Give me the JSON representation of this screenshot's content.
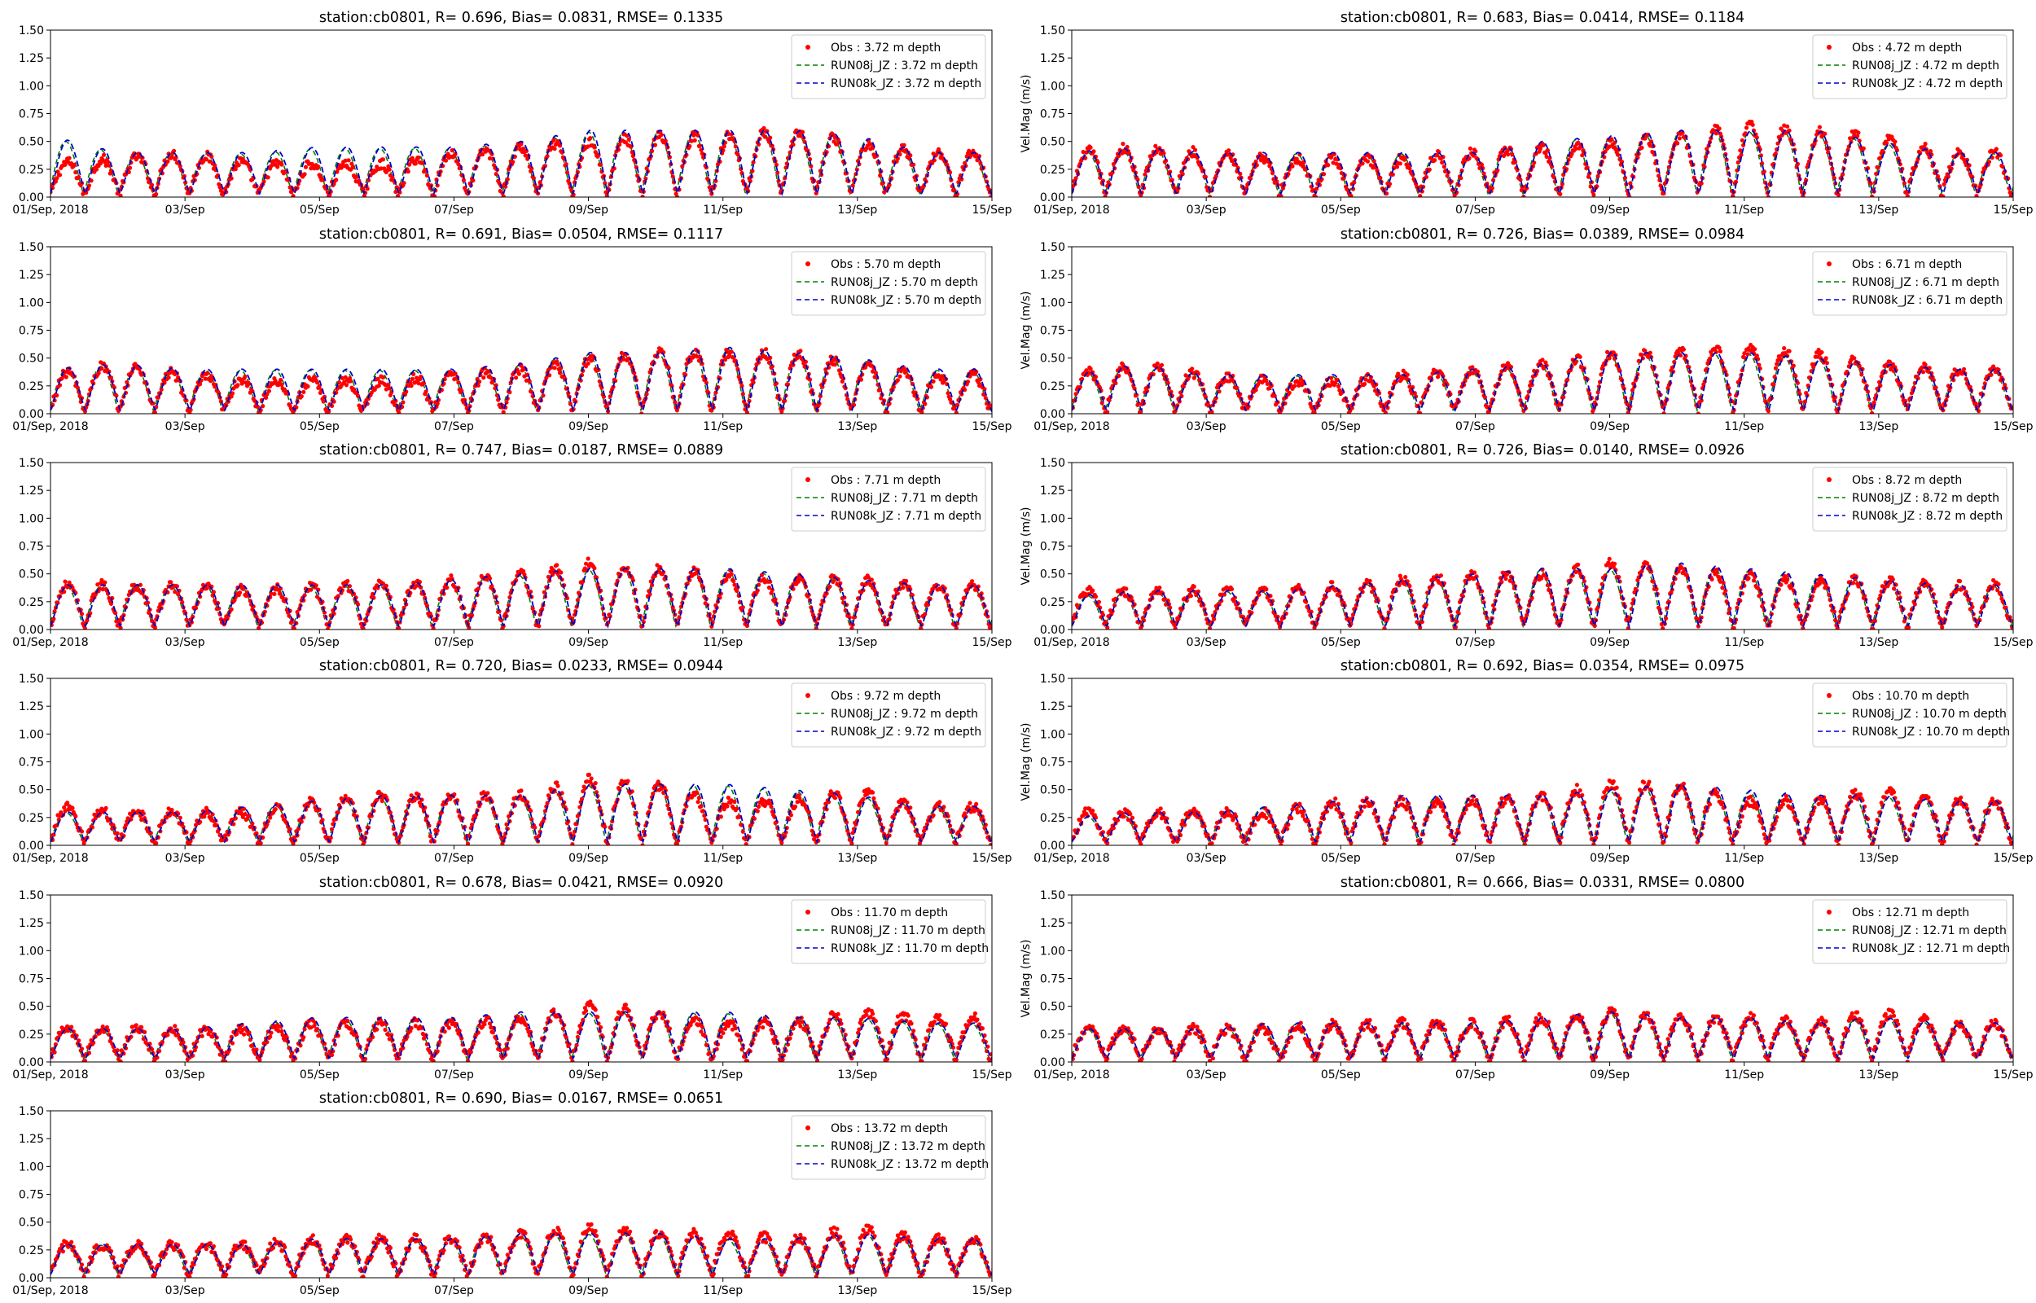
{
  "figure": {
    "x_ticks": [
      "01/Sep, 2018",
      "03/Sep",
      "05/Sep",
      "07/Sep",
      "09/Sep",
      "11/Sep",
      "13/Sep",
      "15/Sep"
    ],
    "y_ticks": [
      "0.00",
      "0.25",
      "0.50",
      "0.75",
      "1.00",
      "1.25",
      "1.50"
    ],
    "colors": {
      "obs": "#ff0000",
      "run_j": "#008000",
      "run_k": "#0000cc",
      "axis": "#000000"
    }
  },
  "chart_data": [
    {
      "type": "line",
      "title": "station:cb0801, R= 0.696, Bias= 0.0831, RMSE= 0.1335",
      "ylabel": "",
      "depth": "3.72",
      "xlim": [
        "2018-09-01",
        "2018-09-15"
      ],
      "ylim": [
        0,
        1.5
      ],
      "grid": false,
      "legend": "top-right",
      "series": [
        {
          "name": "Obs : 3.72 m depth",
          "style": "points"
        },
        {
          "name": "RUN08j_JZ : 3.72 m depth",
          "style": "dashed"
        },
        {
          "name": "RUN08k_JZ : 3.72 m depth",
          "style": "dashed"
        }
      ],
      "daily_peak_obs": [
        0.3,
        0.35,
        0.4,
        0.3,
        0.3,
        0.3,
        0.4,
        0.45,
        0.5,
        0.55,
        0.55,
        0.6,
        0.5,
        0.4
      ],
      "daily_peak_model": [
        0.55,
        0.4,
        0.4,
        0.4,
        0.45,
        0.45,
        0.45,
        0.5,
        0.6,
        0.6,
        0.6,
        0.6,
        0.55,
        0.4
      ]
    },
    {
      "type": "line",
      "title": "station:cb0801, R= 0.683, Bias= 0.0414, RMSE= 0.1184",
      "ylabel": "Vel.Mag (m/s)",
      "depth": "4.72",
      "xlim": [
        "2018-09-01",
        "2018-09-15"
      ],
      "ylim": [
        0,
        1.5
      ],
      "grid": false,
      "legend": "top-right",
      "series": [
        {
          "name": "Obs : 4.72 m depth",
          "style": "points"
        },
        {
          "name": "RUN08j_JZ : 4.72 m depth",
          "style": "dashed"
        },
        {
          "name": "RUN08k_JZ : 4.72 m depth",
          "style": "dashed"
        }
      ],
      "daily_peak_obs": [
        0.4,
        0.45,
        0.4,
        0.35,
        0.35,
        0.35,
        0.4,
        0.45,
        0.5,
        0.55,
        0.65,
        0.6,
        0.55,
        0.4
      ],
      "daily_peak_model": [
        0.4,
        0.45,
        0.4,
        0.4,
        0.4,
        0.4,
        0.4,
        0.5,
        0.55,
        0.6,
        0.6,
        0.6,
        0.5,
        0.4
      ]
    },
    {
      "type": "line",
      "title": "station:cb0801, R= 0.691, Bias= 0.0504, RMSE= 0.1117",
      "ylabel": "",
      "depth": "5.70",
      "xlim": [
        "2018-09-01",
        "2018-09-15"
      ],
      "ylim": [
        0,
        1.5
      ],
      "grid": false,
      "legend": "top-right",
      "series": [
        {
          "name": "Obs : 5.70 m depth",
          "style": "points"
        },
        {
          "name": "RUN08j_JZ : 5.70 m depth",
          "style": "dashed"
        },
        {
          "name": "RUN08k_JZ : 5.70 m depth",
          "style": "dashed"
        }
      ],
      "daily_peak_obs": [
        0.35,
        0.45,
        0.35,
        0.3,
        0.3,
        0.3,
        0.35,
        0.4,
        0.5,
        0.55,
        0.55,
        0.55,
        0.45,
        0.35
      ],
      "daily_peak_model": [
        0.4,
        0.45,
        0.4,
        0.4,
        0.4,
        0.4,
        0.4,
        0.45,
        0.55,
        0.55,
        0.6,
        0.55,
        0.5,
        0.4
      ]
    },
    {
      "type": "line",
      "title": "station:cb0801, R= 0.726, Bias= 0.0389, RMSE= 0.0984",
      "ylabel": "Vel.Mag (m/s)",
      "depth": "6.71",
      "xlim": [
        "2018-09-01",
        "2018-09-15"
      ],
      "ylim": [
        0,
        1.5
      ],
      "grid": false,
      "legend": "top-right",
      "series": [
        {
          "name": "Obs : 6.71 m depth",
          "style": "points"
        },
        {
          "name": "RUN08j_JZ : 6.71 m depth",
          "style": "dashed"
        },
        {
          "name": "RUN08k_JZ : 6.71 m depth",
          "style": "dashed"
        }
      ],
      "daily_peak_obs": [
        0.35,
        0.45,
        0.35,
        0.3,
        0.3,
        0.35,
        0.4,
        0.45,
        0.55,
        0.55,
        0.6,
        0.55,
        0.45,
        0.4
      ],
      "daily_peak_model": [
        0.35,
        0.45,
        0.35,
        0.35,
        0.35,
        0.35,
        0.4,
        0.45,
        0.55,
        0.55,
        0.55,
        0.5,
        0.45,
        0.4
      ]
    },
    {
      "type": "line",
      "title": "station:cb0801, R= 0.747, Bias= 0.0187, RMSE= 0.0889",
      "ylabel": "",
      "depth": "7.71",
      "xlim": [
        "2018-09-01",
        "2018-09-15"
      ],
      "ylim": [
        0,
        1.5
      ],
      "grid": false,
      "legend": "top-right",
      "series": [
        {
          "name": "Obs : 7.71 m depth",
          "style": "points"
        },
        {
          "name": "RUN08j_JZ : 7.71 m depth",
          "style": "dashed"
        },
        {
          "name": "RUN08k_JZ : 7.71 m depth",
          "style": "dashed"
        }
      ],
      "daily_peak_obs": [
        0.4,
        0.4,
        0.4,
        0.35,
        0.4,
        0.4,
        0.45,
        0.5,
        0.6,
        0.55,
        0.5,
        0.45,
        0.45,
        0.4
      ],
      "daily_peak_model": [
        0.4,
        0.4,
        0.4,
        0.4,
        0.4,
        0.4,
        0.45,
        0.5,
        0.55,
        0.55,
        0.55,
        0.5,
        0.45,
        0.4
      ]
    },
    {
      "type": "line",
      "title": "station:cb0801, R= 0.726, Bias= 0.0140, RMSE= 0.0926",
      "ylabel": "Vel.Mag (m/s)",
      "depth": "8.72",
      "xlim": [
        "2018-09-01",
        "2018-09-15"
      ],
      "ylim": [
        0,
        1.5
      ],
      "grid": false,
      "legend": "top-right",
      "series": [
        {
          "name": "Obs : 8.72 m depth",
          "style": "points"
        },
        {
          "name": "RUN08j_JZ : 8.72 m depth",
          "style": "dashed"
        },
        {
          "name": "RUN08k_JZ : 8.72 m depth",
          "style": "dashed"
        }
      ],
      "daily_peak_obs": [
        0.35,
        0.35,
        0.35,
        0.35,
        0.4,
        0.45,
        0.5,
        0.5,
        0.6,
        0.55,
        0.5,
        0.45,
        0.45,
        0.4
      ],
      "daily_peak_model": [
        0.3,
        0.35,
        0.35,
        0.35,
        0.4,
        0.45,
        0.5,
        0.55,
        0.55,
        0.6,
        0.55,
        0.5,
        0.45,
        0.4
      ]
    },
    {
      "type": "line",
      "title": "station:cb0801, R= 0.720, Bias= 0.0233, RMSE= 0.0944",
      "ylabel": "",
      "depth": "9.72",
      "xlim": [
        "2018-09-01",
        "2018-09-15"
      ],
      "ylim": [
        0,
        1.5
      ],
      "grid": false,
      "legend": "top-right",
      "series": [
        {
          "name": "Obs : 9.72 m depth",
          "style": "points"
        },
        {
          "name": "RUN08j_JZ : 9.72 m depth",
          "style": "dashed"
        },
        {
          "name": "RUN08k_JZ : 9.72 m depth",
          "style": "dashed"
        }
      ],
      "daily_peak_obs": [
        0.35,
        0.3,
        0.3,
        0.3,
        0.4,
        0.45,
        0.45,
        0.45,
        0.6,
        0.55,
        0.4,
        0.4,
        0.5,
        0.35
      ],
      "daily_peak_model": [
        0.3,
        0.3,
        0.3,
        0.35,
        0.4,
        0.45,
        0.45,
        0.45,
        0.55,
        0.55,
        0.55,
        0.5,
        0.45,
        0.35
      ]
    },
    {
      "type": "line",
      "title": "station:cb0801, R= 0.692, Bias= 0.0354, RMSE= 0.0975",
      "ylabel": "Vel.Mag (m/s)",
      "depth": "10.70",
      "xlim": [
        "2018-09-01",
        "2018-09-15"
      ],
      "ylim": [
        0,
        1.5
      ],
      "grid": false,
      "legend": "top-right",
      "series": [
        {
          "name": "Obs : 10.70 m depth",
          "style": "points"
        },
        {
          "name": "RUN08j_JZ : 10.70 m depth",
          "style": "dashed"
        },
        {
          "name": "RUN08k_JZ : 10.70 m depth",
          "style": "dashed"
        }
      ],
      "daily_peak_obs": [
        0.3,
        0.3,
        0.3,
        0.3,
        0.4,
        0.4,
        0.4,
        0.45,
        0.55,
        0.55,
        0.4,
        0.4,
        0.5,
        0.4
      ],
      "daily_peak_model": [
        0.25,
        0.3,
        0.3,
        0.35,
        0.4,
        0.45,
        0.45,
        0.45,
        0.5,
        0.55,
        0.5,
        0.45,
        0.45,
        0.4
      ]
    },
    {
      "type": "line",
      "title": "station:cb0801, R= 0.678, Bias= 0.0421, RMSE= 0.0920",
      "ylabel": "",
      "depth": "11.70",
      "xlim": [
        "2018-09-01",
        "2018-09-15"
      ],
      "ylim": [
        0,
        1.5
      ],
      "grid": false,
      "legend": "top-right",
      "series": [
        {
          "name": "Obs : 11.70 m depth",
          "style": "points"
        },
        {
          "name": "RUN08j_JZ : 11.70 m depth",
          "style": "dashed"
        },
        {
          "name": "RUN08k_JZ : 11.70 m depth",
          "style": "dashed"
        }
      ],
      "daily_peak_obs": [
        0.3,
        0.3,
        0.3,
        0.3,
        0.35,
        0.35,
        0.35,
        0.4,
        0.5,
        0.45,
        0.35,
        0.35,
        0.45,
        0.4
      ],
      "daily_peak_model": [
        0.3,
        0.3,
        0.3,
        0.35,
        0.4,
        0.4,
        0.4,
        0.45,
        0.45,
        0.45,
        0.45,
        0.4,
        0.4,
        0.35
      ]
    },
    {
      "type": "line",
      "title": "station:cb0801, R= 0.666, Bias= 0.0331, RMSE= 0.0800",
      "ylabel": "Vel.Mag (m/s)",
      "depth": "12.71",
      "xlim": [
        "2018-09-01",
        "2018-09-15"
      ],
      "ylim": [
        0,
        1.5
      ],
      "grid": false,
      "legend": "top-right",
      "series": [
        {
          "name": "Obs : 12.71 m depth",
          "style": "points"
        },
        {
          "name": "RUN08j_JZ : 12.71 m depth",
          "style": "dashed"
        },
        {
          "name": "RUN08k_JZ : 12.71 m depth",
          "style": "dashed"
        }
      ],
      "daily_peak_obs": [
        0.3,
        0.3,
        0.3,
        0.3,
        0.35,
        0.35,
        0.35,
        0.4,
        0.45,
        0.4,
        0.4,
        0.35,
        0.45,
        0.35
      ],
      "daily_peak_model": [
        0.3,
        0.3,
        0.3,
        0.35,
        0.35,
        0.35,
        0.35,
        0.4,
        0.45,
        0.4,
        0.4,
        0.35,
        0.4,
        0.35
      ]
    },
    {
      "type": "line",
      "title": "station:cb0801, R= 0.690, Bias= 0.0167, RMSE= 0.0651",
      "ylabel": "",
      "depth": "13.72",
      "xlim": [
        "2018-09-01",
        "2018-09-15"
      ],
      "ylim": [
        0,
        1.5
      ],
      "grid": false,
      "legend": "top-right",
      "series": [
        {
          "name": "Obs : 13.72 m depth",
          "style": "points"
        },
        {
          "name": "RUN08j_JZ : 13.72 m depth",
          "style": "dashed"
        },
        {
          "name": "RUN08k_JZ : 13.72 m depth",
          "style": "dashed"
        }
      ],
      "daily_peak_obs": [
        0.3,
        0.3,
        0.3,
        0.3,
        0.35,
        0.35,
        0.35,
        0.4,
        0.45,
        0.4,
        0.4,
        0.35,
        0.45,
        0.35
      ],
      "daily_peak_model": [
        0.3,
        0.3,
        0.3,
        0.3,
        0.35,
        0.35,
        0.35,
        0.4,
        0.4,
        0.4,
        0.35,
        0.35,
        0.4,
        0.35
      ]
    }
  ]
}
